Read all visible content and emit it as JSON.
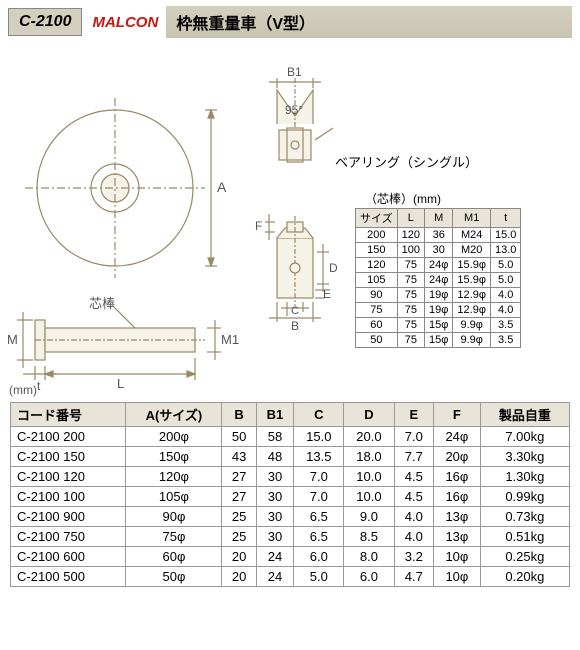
{
  "header": {
    "code": "C-2100",
    "brand": "MALCON",
    "title": "枠無重量車（V型）"
  },
  "diagram": {
    "bearing_label": "ベアリング（シングル）",
    "shaft_label": "芯棒",
    "angle": "95°",
    "unit": "(mm)",
    "dim_labels": [
      "A",
      "B",
      "B1",
      "C",
      "D",
      "E",
      "F",
      "L",
      "M",
      "M1",
      "t"
    ],
    "stroke": "#998866",
    "fill": "#f5f2e8"
  },
  "small_table": {
    "caption": "（芯棒）(mm)",
    "headers": [
      "サイズ",
      "L",
      "M",
      "M1",
      "t"
    ],
    "rows": [
      [
        "200",
        "120",
        "36",
        "M24",
        "15.0"
      ],
      [
        "150",
        "100",
        "30",
        "M20",
        "13.0"
      ],
      [
        "120",
        "75",
        "24φ",
        "15.9φ",
        "5.0"
      ],
      [
        "105",
        "75",
        "24φ",
        "15.9φ",
        "5.0"
      ],
      [
        "90",
        "75",
        "19φ",
        "12.9φ",
        "4.0"
      ],
      [
        "75",
        "75",
        "19φ",
        "12.9φ",
        "4.0"
      ],
      [
        "60",
        "75",
        "15φ",
        "9.9φ",
        "3.5"
      ],
      [
        "50",
        "75",
        "15φ",
        "9.9φ",
        "3.5"
      ]
    ]
  },
  "main_table": {
    "headers": [
      "コード番号",
      "A(サイズ)",
      "B",
      "B1",
      "C",
      "D",
      "E",
      "F",
      "製品自重"
    ],
    "rows": [
      [
        "C-2100 200",
        "200φ",
        "50",
        "58",
        "15.0",
        "20.0",
        "7.0",
        "24φ",
        "7.00kg"
      ],
      [
        "C-2100 150",
        "150φ",
        "43",
        "48",
        "13.5",
        "18.0",
        "7.7",
        "20φ",
        "3.30kg"
      ],
      [
        "C-2100 120",
        "120φ",
        "27",
        "30",
        "7.0",
        "10.0",
        "4.5",
        "16φ",
        "1.30kg"
      ],
      [
        "C-2100 100",
        "105φ",
        "27",
        "30",
        "7.0",
        "10.0",
        "4.5",
        "16φ",
        "0.99kg"
      ],
      [
        "C-2100 900",
        "90φ",
        "25",
        "30",
        "6.5",
        "9.0",
        "4.0",
        "13φ",
        "0.73kg"
      ],
      [
        "C-2100 750",
        "75φ",
        "25",
        "30",
        "6.5",
        "8.5",
        "4.0",
        "13φ",
        "0.51kg"
      ],
      [
        "C-2100 600",
        "60φ",
        "20",
        "24",
        "6.0",
        "8.0",
        "3.2",
        "10φ",
        "0.25kg"
      ],
      [
        "C-2100 500",
        "50φ",
        "20",
        "24",
        "5.0",
        "6.0",
        "4.7",
        "10φ",
        "0.20kg"
      ]
    ]
  }
}
